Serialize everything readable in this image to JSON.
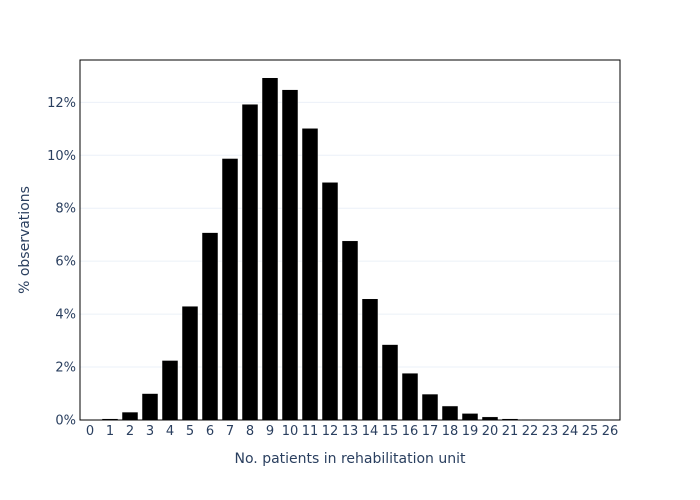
{
  "chart_data": {
    "type": "bar",
    "categories": [
      "0",
      "1",
      "2",
      "3",
      "4",
      "5",
      "6",
      "7",
      "8",
      "9",
      "10",
      "11",
      "12",
      "13",
      "14",
      "15",
      "16",
      "17",
      "18",
      "19",
      "20",
      "21",
      "22",
      "23",
      "24",
      "25",
      "26"
    ],
    "values": [
      0.0,
      0.05,
      0.3,
      1.0,
      2.25,
      4.3,
      7.08,
      9.88,
      11.93,
      12.93,
      12.48,
      11.02,
      8.98,
      6.77,
      4.58,
      2.85,
      1.77,
      0.98,
      0.53,
      0.25,
      0.12,
      0.05,
      0.02,
      0.01,
      0.0,
      0.0,
      0.0
    ],
    "title": "",
    "xlabel": "No. patients in rehabilitation unit",
    "ylabel": "% observations",
    "ylim": [
      0,
      13.6
    ],
    "yticks": [
      0,
      2,
      4,
      6,
      8,
      10,
      12
    ],
    "ytick_labels": [
      "0%",
      "2%",
      "4%",
      "6%",
      "8%",
      "10%",
      "12%"
    ],
    "grid": true,
    "legend": "none",
    "bar_color": "#000000",
    "text_color": "#2a3f5f"
  }
}
